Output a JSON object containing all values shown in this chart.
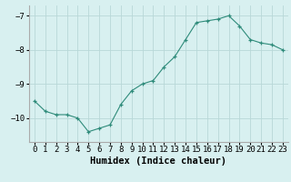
{
  "x": [
    0,
    1,
    2,
    3,
    4,
    5,
    6,
    7,
    8,
    9,
    10,
    11,
    12,
    13,
    14,
    15,
    16,
    17,
    18,
    19,
    20,
    21,
    22,
    23
  ],
  "y": [
    -9.5,
    -9.8,
    -9.9,
    -9.9,
    -10.0,
    -10.4,
    -10.3,
    -10.2,
    -9.6,
    -9.2,
    -9.0,
    -8.9,
    -8.5,
    -8.2,
    -7.7,
    -7.2,
    -7.15,
    -7.1,
    -7.0,
    -7.3,
    -7.7,
    -7.8,
    -7.85,
    -8.0
  ],
  "title": "",
  "xlabel": "Humidex (Indice chaleur)",
  "ylabel": "",
  "ylim": [
    -10.7,
    -6.7
  ],
  "yticks": [
    -10,
    -9,
    -8,
    -7
  ],
  "xticks": [
    0,
    1,
    2,
    3,
    4,
    5,
    6,
    7,
    8,
    9,
    10,
    11,
    12,
    13,
    14,
    15,
    16,
    17,
    18,
    19,
    20,
    21,
    22,
    23
  ],
  "line_color": "#2e8b7a",
  "marker": "+",
  "bg_color": "#d8f0f0",
  "grid_color": "#b8d8d8",
  "xlabel_fontsize": 7.5,
  "tick_fontsize": 6.5
}
